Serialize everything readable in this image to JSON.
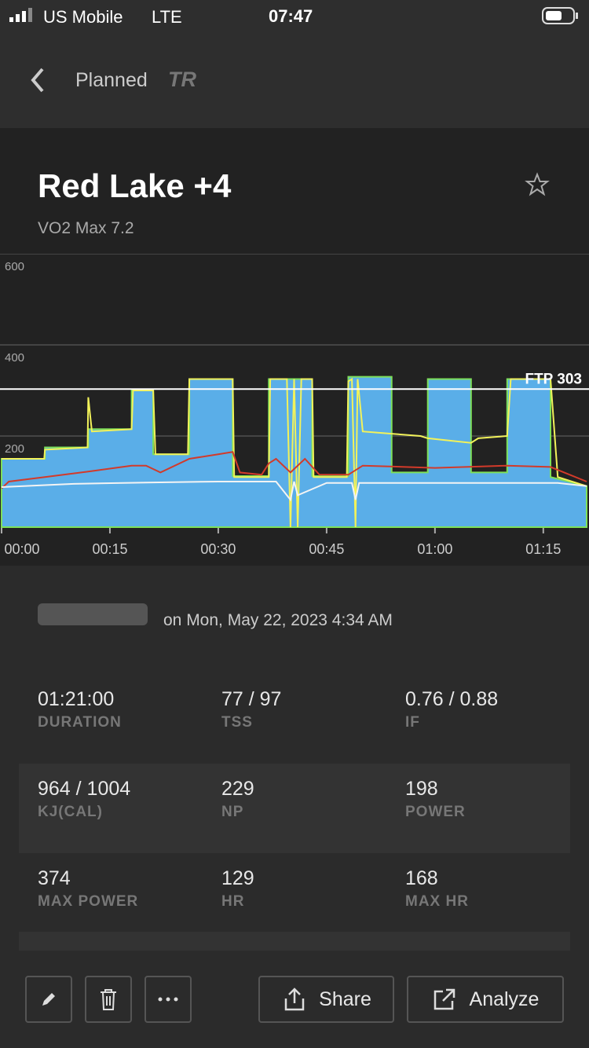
{
  "status": {
    "carrier": "US Mobile",
    "network": "LTE",
    "time": "07:47"
  },
  "nav": {
    "title": "Planned",
    "logo": "TR"
  },
  "workout": {
    "title": "Red Lake +4",
    "subtitle": "VO2 Max 7.2",
    "date": "on Mon, May 22, 2023 4:34 AM"
  },
  "chart_data": {
    "type": "line",
    "xlim": [
      0,
      81
    ],
    "ylim": [
      0,
      600
    ],
    "xticks": [
      {
        "value": 0,
        "label": "00:00"
      },
      {
        "value": 15,
        "label": "00:15"
      },
      {
        "value": 30,
        "label": "00:30"
      },
      {
        "value": 45,
        "label": "00:45"
      },
      {
        "value": 60,
        "label": "01:00"
      },
      {
        "value": 75,
        "label": "01:15"
      }
    ],
    "yticks": [
      200,
      400,
      600
    ],
    "grid": true,
    "ftp": {
      "value": 303,
      "label": "FTP 303"
    },
    "series": [
      {
        "color": "#5aaee8",
        "fill": true,
        "x": [
          0,
          6,
          6,
          12,
          12,
          18,
          18,
          21,
          21,
          26,
          26,
          32,
          32,
          37,
          37,
          43,
          43,
          48,
          48,
          54,
          54,
          59,
          59,
          65,
          65,
          70,
          70,
          76,
          76,
          81
        ],
        "values": [
          150,
          150,
          175,
          175,
          215,
          215,
          300,
          300,
          160,
          160,
          325,
          325,
          112,
          112,
          325,
          325,
          112,
          112,
          330,
          330,
          120,
          120,
          325,
          325,
          120,
          120,
          325,
          325,
          110,
          90
        ]
      },
      {
        "color": "#f2f25a",
        "x": [
          0,
          5.9,
          6,
          11.9,
          12,
          12.5,
          18,
          18.2,
          21,
          21.3,
          25.8,
          26,
          32,
          32.2,
          37,
          37.2,
          39.5,
          40,
          40.5,
          41,
          41.5,
          43,
          43.2,
          47.8,
          48,
          48.5,
          49,
          49.3,
          50,
          54,
          58,
          59,
          65,
          66,
          70,
          70.5,
          76,
          77,
          81
        ],
        "values": [
          150,
          150,
          170,
          175,
          285,
          210,
          215,
          300,
          300,
          160,
          160,
          325,
          325,
          110,
          110,
          325,
          325,
          0,
          325,
          0,
          325,
          325,
          110,
          110,
          320,
          325,
          0,
          325,
          210,
          205,
          200,
          195,
          185,
          195,
          200,
          325,
          325,
          110,
          90
        ]
      },
      {
        "color": "#d23a2a",
        "x": [
          0,
          1,
          6,
          12,
          18,
          20,
          22,
          26,
          30,
          32,
          33,
          36,
          37,
          38,
          40,
          42,
          44,
          48,
          50,
          60,
          70,
          76,
          81
        ],
        "values": [
          85,
          100,
          110,
          122,
          135,
          135,
          120,
          150,
          160,
          165,
          120,
          115,
          140,
          150,
          120,
          150,
          115,
          115,
          135,
          130,
          135,
          132,
          100
        ]
      },
      {
        "color": "#f4f4f4",
        "x": [
          0,
          10,
          20,
          30,
          38,
          40,
          40.5,
          41,
          45,
          48.5,
          49,
          49.5,
          55,
          65,
          75,
          77,
          81
        ],
        "values": [
          88,
          95,
          98,
          100,
          100,
          60,
          100,
          70,
          97,
          97,
          60,
          97,
          97,
          97,
          97,
          97,
          90
        ]
      }
    ]
  },
  "stats": [
    [
      {
        "value": "01:21:00",
        "label": "DURATION"
      },
      {
        "value": "77 / 97",
        "label": "TSS"
      },
      {
        "value": "0.76 / 0.88",
        "label": "IF"
      }
    ],
    [
      {
        "value": "964 / 1004",
        "label": "KJ(CAL)"
      },
      {
        "value": "229",
        "label": "NP"
      },
      {
        "value": "198",
        "label": "POWER"
      }
    ],
    [
      {
        "value": "374",
        "label": "MAX POWER"
      },
      {
        "value": "129",
        "label": "HR"
      },
      {
        "value": "168",
        "label": "MAX HR"
      }
    ]
  ],
  "buttons": {
    "share": "Share",
    "analyze": "Analyze"
  }
}
